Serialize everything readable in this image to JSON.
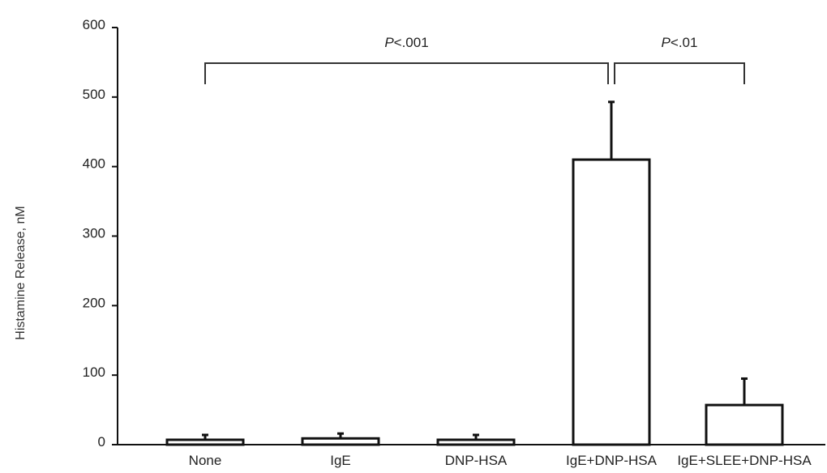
{
  "chart_data": {
    "type": "bar",
    "title": "",
    "xlabel": "",
    "ylabel": "Histamine Release, nM",
    "ylim": [
      0,
      600
    ],
    "yticks": [
      "0",
      "100",
      "200",
      "300",
      "400",
      "500",
      "600"
    ],
    "categories": [
      "None",
      "IgE",
      "DNP-HSA",
      "IgE+DNP-HSA",
      "IgE+SLEE+DNP-HSA"
    ],
    "values": [
      7,
      9,
      7,
      410,
      57
    ],
    "errors": [
      7,
      7,
      7,
      83,
      38
    ],
    "significance": [
      {
        "from": "None",
        "to": "IgE+DNP-HSA",
        "label_prefix": "P",
        "label_value": "<.001"
      },
      {
        "from": "IgE+DNP-HSA",
        "to": "IgE+SLEE+DNP-HSA",
        "label_prefix": "P",
        "label_value": "<.01"
      }
    ],
    "grid": false,
    "bar_fill": "#ffffff",
    "bar_stroke": "#111111"
  }
}
